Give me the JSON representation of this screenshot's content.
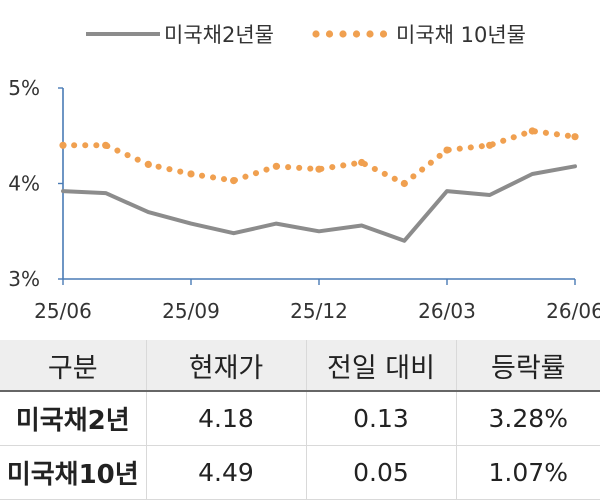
{
  "chart_data": {
    "type": "line",
    "title": "",
    "xlabel": "",
    "ylabel": "",
    "ylim": [
      3,
      5
    ],
    "y_ticks": [
      "3%",
      "4%",
      "5%"
    ],
    "x_ticks": [
      "25/06",
      "25/09",
      "25/12",
      "26/03",
      "26/06"
    ],
    "x": [
      "25/06",
      "25/07",
      "25/08",
      "25/09",
      "25/10",
      "25/11",
      "25/12",
      "26/01",
      "26/02",
      "26/03",
      "26/04",
      "26/05",
      "26/06"
    ],
    "legend_position": "top",
    "grid": false,
    "series": [
      {
        "name": "미국채2년물",
        "style": "solid",
        "color": "#8c8c8c",
        "values": [
          3.92,
          3.9,
          3.7,
          3.58,
          3.48,
          3.58,
          3.5,
          3.56,
          3.4,
          3.92,
          3.88,
          4.1,
          4.18
        ]
      },
      {
        "name": "미국채 10년물",
        "style": "dotted",
        "color": "#f0a050",
        "values": [
          4.4,
          4.4,
          4.2,
          4.1,
          4.03,
          4.18,
          4.15,
          4.22,
          4.0,
          4.35,
          4.4,
          4.55,
          4.49
        ]
      }
    ]
  },
  "table": {
    "headers": [
      "구분",
      "현재가",
      "전일 대비",
      "등락률"
    ],
    "rows": [
      [
        "미국채2년",
        "4.18",
        "0.13",
        "3.28%"
      ],
      [
        "미국채10년",
        "4.49",
        "0.05",
        "1.07%"
      ]
    ]
  }
}
